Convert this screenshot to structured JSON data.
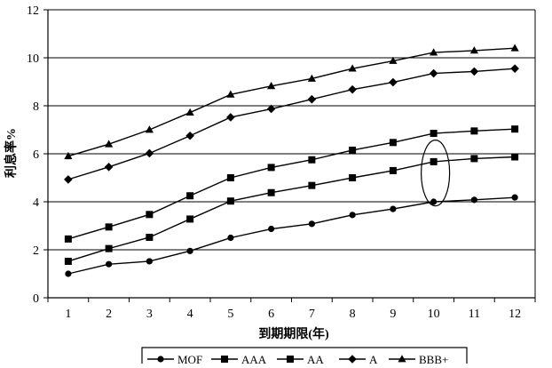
{
  "chart_data": {
    "type": "line",
    "title": "",
    "xlabel": "到期期限(年)",
    "ylabel": "利息率%",
    "x": [
      1,
      2,
      3,
      4,
      5,
      6,
      7,
      8,
      9,
      10,
      11,
      12
    ],
    "xlim": [
      0.5,
      12.5
    ],
    "ylim": [
      0,
      12
    ],
    "yticks": [
      0,
      2,
      4,
      6,
      8,
      10,
      12
    ],
    "grid": "horizontal",
    "legend_position": "bottom",
    "annotation": "ellipse around x = 10",
    "series": [
      {
        "name": "MOF",
        "marker": "circle",
        "values": [
          1.0,
          1.4,
          1.52,
          1.95,
          2.5,
          2.87,
          3.08,
          3.45,
          3.7,
          4.0,
          4.08,
          4.18
        ]
      },
      {
        "name": "AAA",
        "marker": "square",
        "values": [
          1.52,
          2.05,
          2.52,
          3.28,
          4.03,
          4.38,
          4.68,
          5.0,
          5.3,
          5.67,
          5.8,
          5.87
        ]
      },
      {
        "name": "AA",
        "marker": "square",
        "values": [
          2.45,
          2.95,
          3.47,
          4.25,
          5.0,
          5.43,
          5.75,
          6.15,
          6.47,
          6.85,
          6.95,
          7.03
        ]
      },
      {
        "name": "A",
        "marker": "diamond",
        "values": [
          4.93,
          5.45,
          6.02,
          6.75,
          7.52,
          7.87,
          8.27,
          8.68,
          8.98,
          9.35,
          9.43,
          9.55
        ]
      },
      {
        "name": "BBB+",
        "marker": "triangle",
        "values": [
          5.9,
          6.4,
          7.0,
          7.72,
          8.47,
          8.82,
          9.13,
          9.55,
          9.87,
          10.22,
          10.3,
          10.4
        ]
      }
    ],
    "colors": {
      "line": "#000000",
      "grid": "#000000",
      "background": "#ffffff"
    }
  }
}
